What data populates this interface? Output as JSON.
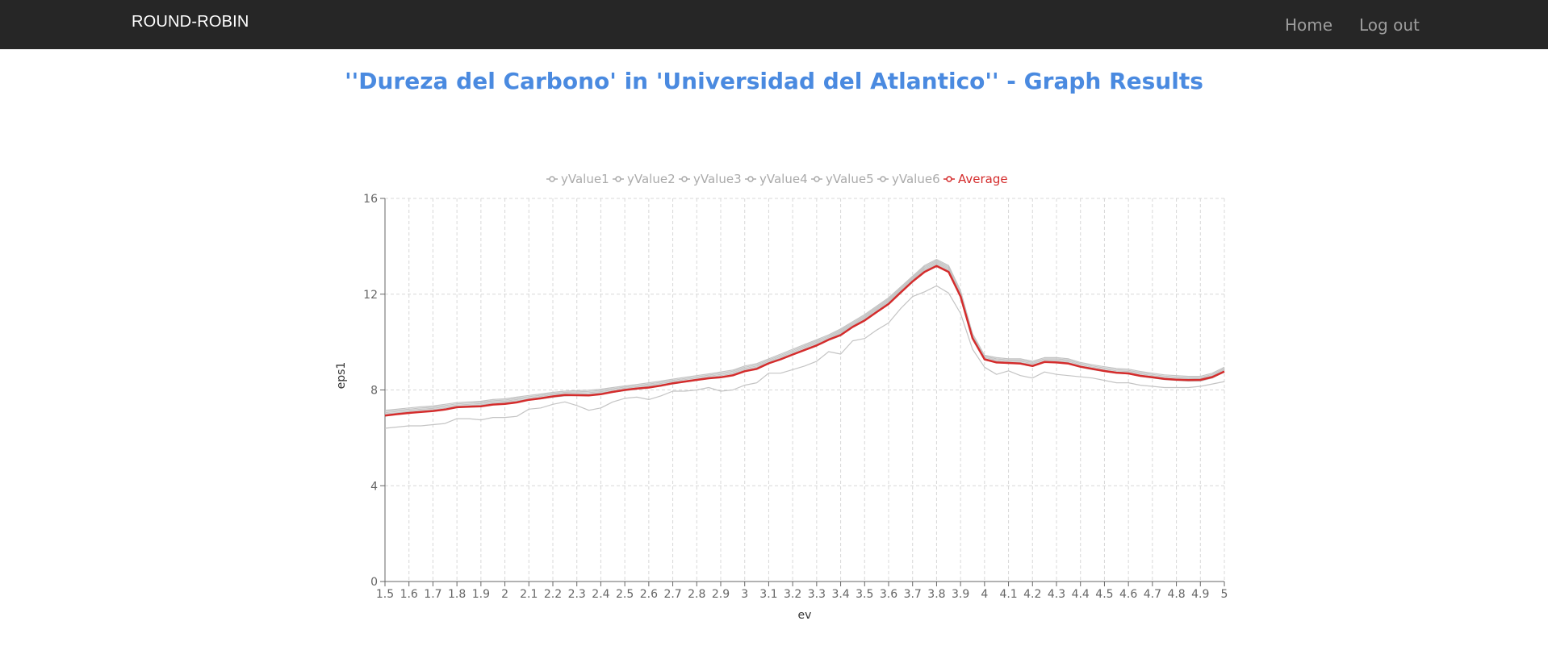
{
  "navbar": {
    "brand": "ROUND-ROBIN",
    "links": [
      {
        "label": "Home"
      },
      {
        "label": "Log out"
      }
    ],
    "background": "#262626"
  },
  "page": {
    "title": "''Dureza del Carbono' in 'Universidad del Atlantico'' - Graph Results",
    "title_color": "#4a8ae0"
  },
  "chart_data": {
    "type": "line",
    "title": "",
    "xlabel": "ev",
    "ylabel": "eps1",
    "xlim": [
      1.5,
      5
    ],
    "ylim": [
      0,
      16
    ],
    "grid": true,
    "legend_position": "top",
    "x_ticks": [
      "1.5",
      "1.6",
      "1.7",
      "1.8",
      "1.9",
      "2",
      "2.1",
      "2.2",
      "2.3",
      "2.4",
      "2.5",
      "2.6",
      "2.7",
      "2.8",
      "2.9",
      "3",
      "3.1",
      "3.2",
      "3.3",
      "3.4",
      "3.5",
      "3.6",
      "3.7",
      "3.8",
      "3.9",
      "4",
      "4.1",
      "4.2",
      "4.3",
      "4.4",
      "4.5",
      "4.6",
      "4.7",
      "4.8",
      "4.9",
      "5"
    ],
    "y_ticks": [
      "0",
      "4",
      "8",
      "12",
      "16"
    ],
    "series_colors": {
      "yValues": "#c4c4c4",
      "Average": "#d42c2c"
    },
    "x": [
      1.5,
      1.55,
      1.6,
      1.65,
      1.7,
      1.75,
      1.8,
      1.85,
      1.9,
      1.95,
      2,
      2.05,
      2.1,
      2.15,
      2.2,
      2.25,
      2.3,
      2.35,
      2.4,
      2.45,
      2.5,
      2.55,
      2.6,
      2.65,
      2.7,
      2.75,
      2.8,
      2.85,
      2.9,
      2.95,
      3,
      3.05,
      3.1,
      3.15,
      3.2,
      3.25,
      3.3,
      3.35,
      3.4,
      3.45,
      3.5,
      3.55,
      3.6,
      3.65,
      3.7,
      3.75,
      3.8,
      3.85,
      3.9,
      3.95,
      4,
      4.05,
      4.1,
      4.15,
      4.2,
      4.25,
      4.3,
      4.35,
      4.4,
      4.45,
      4.5,
      4.55,
      4.6,
      4.65,
      4.7,
      4.75,
      4.8,
      4.85,
      4.9,
      4.95,
      5
    ],
    "series": [
      {
        "name": "yValue1",
        "values": [
          7.0,
          7.05,
          7.1,
          7.15,
          7.18,
          7.25,
          7.32,
          7.35,
          7.38,
          7.45,
          7.48,
          7.55,
          7.62,
          7.68,
          7.75,
          7.8,
          7.82,
          7.84,
          7.88,
          7.95,
          8.02,
          8.08,
          8.15,
          8.22,
          8.3,
          8.38,
          8.45,
          8.52,
          8.6,
          8.68,
          8.85,
          8.95,
          9.15,
          9.35,
          9.55,
          9.75,
          9.95,
          10.15,
          10.4,
          10.7,
          11.0,
          11.35,
          11.7,
          12.15,
          12.6,
          13.05,
          13.3,
          13.05,
          12.0,
          10.2,
          9.3,
          9.2,
          9.15,
          9.15,
          9.05,
          9.2,
          9.2,
          9.15,
          9.0,
          8.9,
          8.82,
          8.75,
          8.72,
          8.62,
          8.55,
          8.48,
          8.45,
          8.42,
          8.42,
          8.55,
          8.8
        ]
      },
      {
        "name": "yValue2",
        "values": [
          7.1,
          7.15,
          7.2,
          7.25,
          7.28,
          7.35,
          7.42,
          7.45,
          7.48,
          7.55,
          7.58,
          7.65,
          7.72,
          7.78,
          7.85,
          7.9,
          7.92,
          7.94,
          7.98,
          8.05,
          8.12,
          8.18,
          8.25,
          8.32,
          8.4,
          8.48,
          8.55,
          8.62,
          8.7,
          8.78,
          8.95,
          9.05,
          9.25,
          9.45,
          9.65,
          9.85,
          10.05,
          10.25,
          10.5,
          10.8,
          11.1,
          11.45,
          11.8,
          12.25,
          12.7,
          13.15,
          13.4,
          13.15,
          12.1,
          10.3,
          9.4,
          9.3,
          9.25,
          9.25,
          9.15,
          9.3,
          9.3,
          9.25,
          9.1,
          9.0,
          8.92,
          8.85,
          8.82,
          8.72,
          8.65,
          8.58,
          8.55,
          8.52,
          8.52,
          8.65,
          8.9
        ]
      },
      {
        "name": "yValue3",
        "values": [
          6.95,
          7.0,
          7.05,
          7.1,
          7.13,
          7.2,
          7.27,
          7.3,
          7.33,
          7.4,
          7.43,
          7.5,
          7.57,
          7.63,
          7.7,
          7.75,
          7.77,
          7.79,
          7.83,
          7.9,
          7.97,
          8.03,
          8.1,
          8.17,
          8.25,
          8.33,
          8.4,
          8.47,
          8.55,
          8.63,
          8.8,
          8.9,
          9.1,
          9.3,
          9.5,
          9.7,
          9.9,
          10.1,
          10.35,
          10.65,
          10.95,
          11.3,
          11.65,
          12.1,
          12.55,
          13.0,
          13.25,
          13.0,
          11.95,
          10.15,
          9.25,
          9.15,
          9.1,
          9.1,
          9.0,
          9.15,
          9.15,
          9.1,
          8.95,
          8.85,
          8.77,
          8.7,
          8.67,
          8.57,
          8.5,
          8.43,
          8.4,
          8.37,
          8.37,
          8.5,
          8.75
        ]
      },
      {
        "name": "yValue4",
        "values": [
          7.05,
          7.1,
          7.15,
          7.2,
          7.23,
          7.3,
          7.37,
          7.4,
          7.43,
          7.5,
          7.53,
          7.6,
          7.67,
          7.73,
          7.8,
          7.85,
          7.87,
          7.89,
          7.93,
          8.0,
          8.07,
          8.13,
          8.2,
          8.27,
          8.35,
          8.43,
          8.5,
          8.57,
          8.65,
          8.73,
          8.9,
          9.0,
          9.2,
          9.4,
          9.6,
          9.8,
          10.0,
          10.2,
          10.45,
          10.75,
          11.05,
          11.4,
          11.75,
          12.2,
          12.65,
          13.1,
          13.35,
          13.1,
          12.05,
          10.25,
          9.35,
          9.25,
          9.2,
          9.2,
          9.1,
          9.25,
          9.25,
          9.2,
          9.05,
          8.95,
          8.87,
          8.8,
          8.77,
          8.67,
          8.6,
          8.53,
          8.5,
          8.47,
          8.47,
          8.6,
          8.85
        ]
      },
      {
        "name": "yValue5",
        "values": [
          7.15,
          7.2,
          7.25,
          7.3,
          7.33,
          7.4,
          7.47,
          7.5,
          7.53,
          7.6,
          7.63,
          7.7,
          7.77,
          7.83,
          7.9,
          7.95,
          7.97,
          7.99,
          8.03,
          8.1,
          8.17,
          8.23,
          8.3,
          8.37,
          8.45,
          8.53,
          8.6,
          8.67,
          8.75,
          8.83,
          9.0,
          9.1,
          9.3,
          9.5,
          9.7,
          9.9,
          10.1,
          10.3,
          10.55,
          10.85,
          11.15,
          11.5,
          11.85,
          12.3,
          12.75,
          13.2,
          13.45,
          13.2,
          12.15,
          10.35,
          9.45,
          9.35,
          9.3,
          9.3,
          9.2,
          9.35,
          9.35,
          9.3,
          9.15,
          9.05,
          8.97,
          8.9,
          8.87,
          8.77,
          8.7,
          8.63,
          8.6,
          8.57,
          8.57,
          8.7,
          8.95
        ]
      },
      {
        "name": "yValue6",
        "values": [
          6.4,
          6.45,
          6.5,
          6.5,
          6.55,
          6.6,
          6.8,
          6.8,
          6.75,
          6.85,
          6.85,
          6.9,
          7.2,
          7.25,
          7.4,
          7.5,
          7.35,
          7.15,
          7.25,
          7.5,
          7.65,
          7.7,
          7.6,
          7.75,
          7.95,
          7.95,
          8.0,
          8.1,
          7.95,
          8.0,
          8.2,
          8.3,
          8.7,
          8.7,
          8.85,
          9.0,
          9.2,
          9.6,
          9.5,
          10.05,
          10.15,
          10.5,
          10.8,
          11.4,
          11.9,
          12.1,
          12.35,
          12.05,
          11.2,
          9.7,
          8.95,
          8.65,
          8.8,
          8.6,
          8.5,
          8.75,
          8.65,
          8.6,
          8.55,
          8.5,
          8.4,
          8.3,
          8.3,
          8.2,
          8.15,
          8.1,
          8.1,
          8.1,
          8.15,
          8.25,
          8.35
        ]
      },
      {
        "name": "Average",
        "values": [
          6.93,
          6.99,
          7.04,
          7.08,
          7.12,
          7.18,
          7.28,
          7.3,
          7.32,
          7.39,
          7.42,
          7.48,
          7.59,
          7.65,
          7.73,
          7.79,
          7.78,
          7.77,
          7.82,
          7.92,
          8.0,
          8.06,
          8.1,
          8.18,
          8.28,
          8.35,
          8.42,
          8.49,
          8.53,
          8.61,
          8.78,
          8.88,
          9.11,
          9.28,
          9.48,
          9.67,
          9.86,
          10.1,
          10.29,
          10.63,
          10.9,
          11.25,
          11.59,
          12.07,
          12.53,
          12.93,
          13.18,
          12.93,
          11.91,
          10.16,
          9.28,
          9.15,
          9.13,
          9.1,
          9.0,
          9.17,
          9.15,
          9.1,
          8.97,
          8.88,
          8.79,
          8.72,
          8.69,
          8.59,
          8.53,
          8.46,
          8.43,
          8.41,
          8.42,
          8.54,
          8.77
        ]
      }
    ]
  }
}
